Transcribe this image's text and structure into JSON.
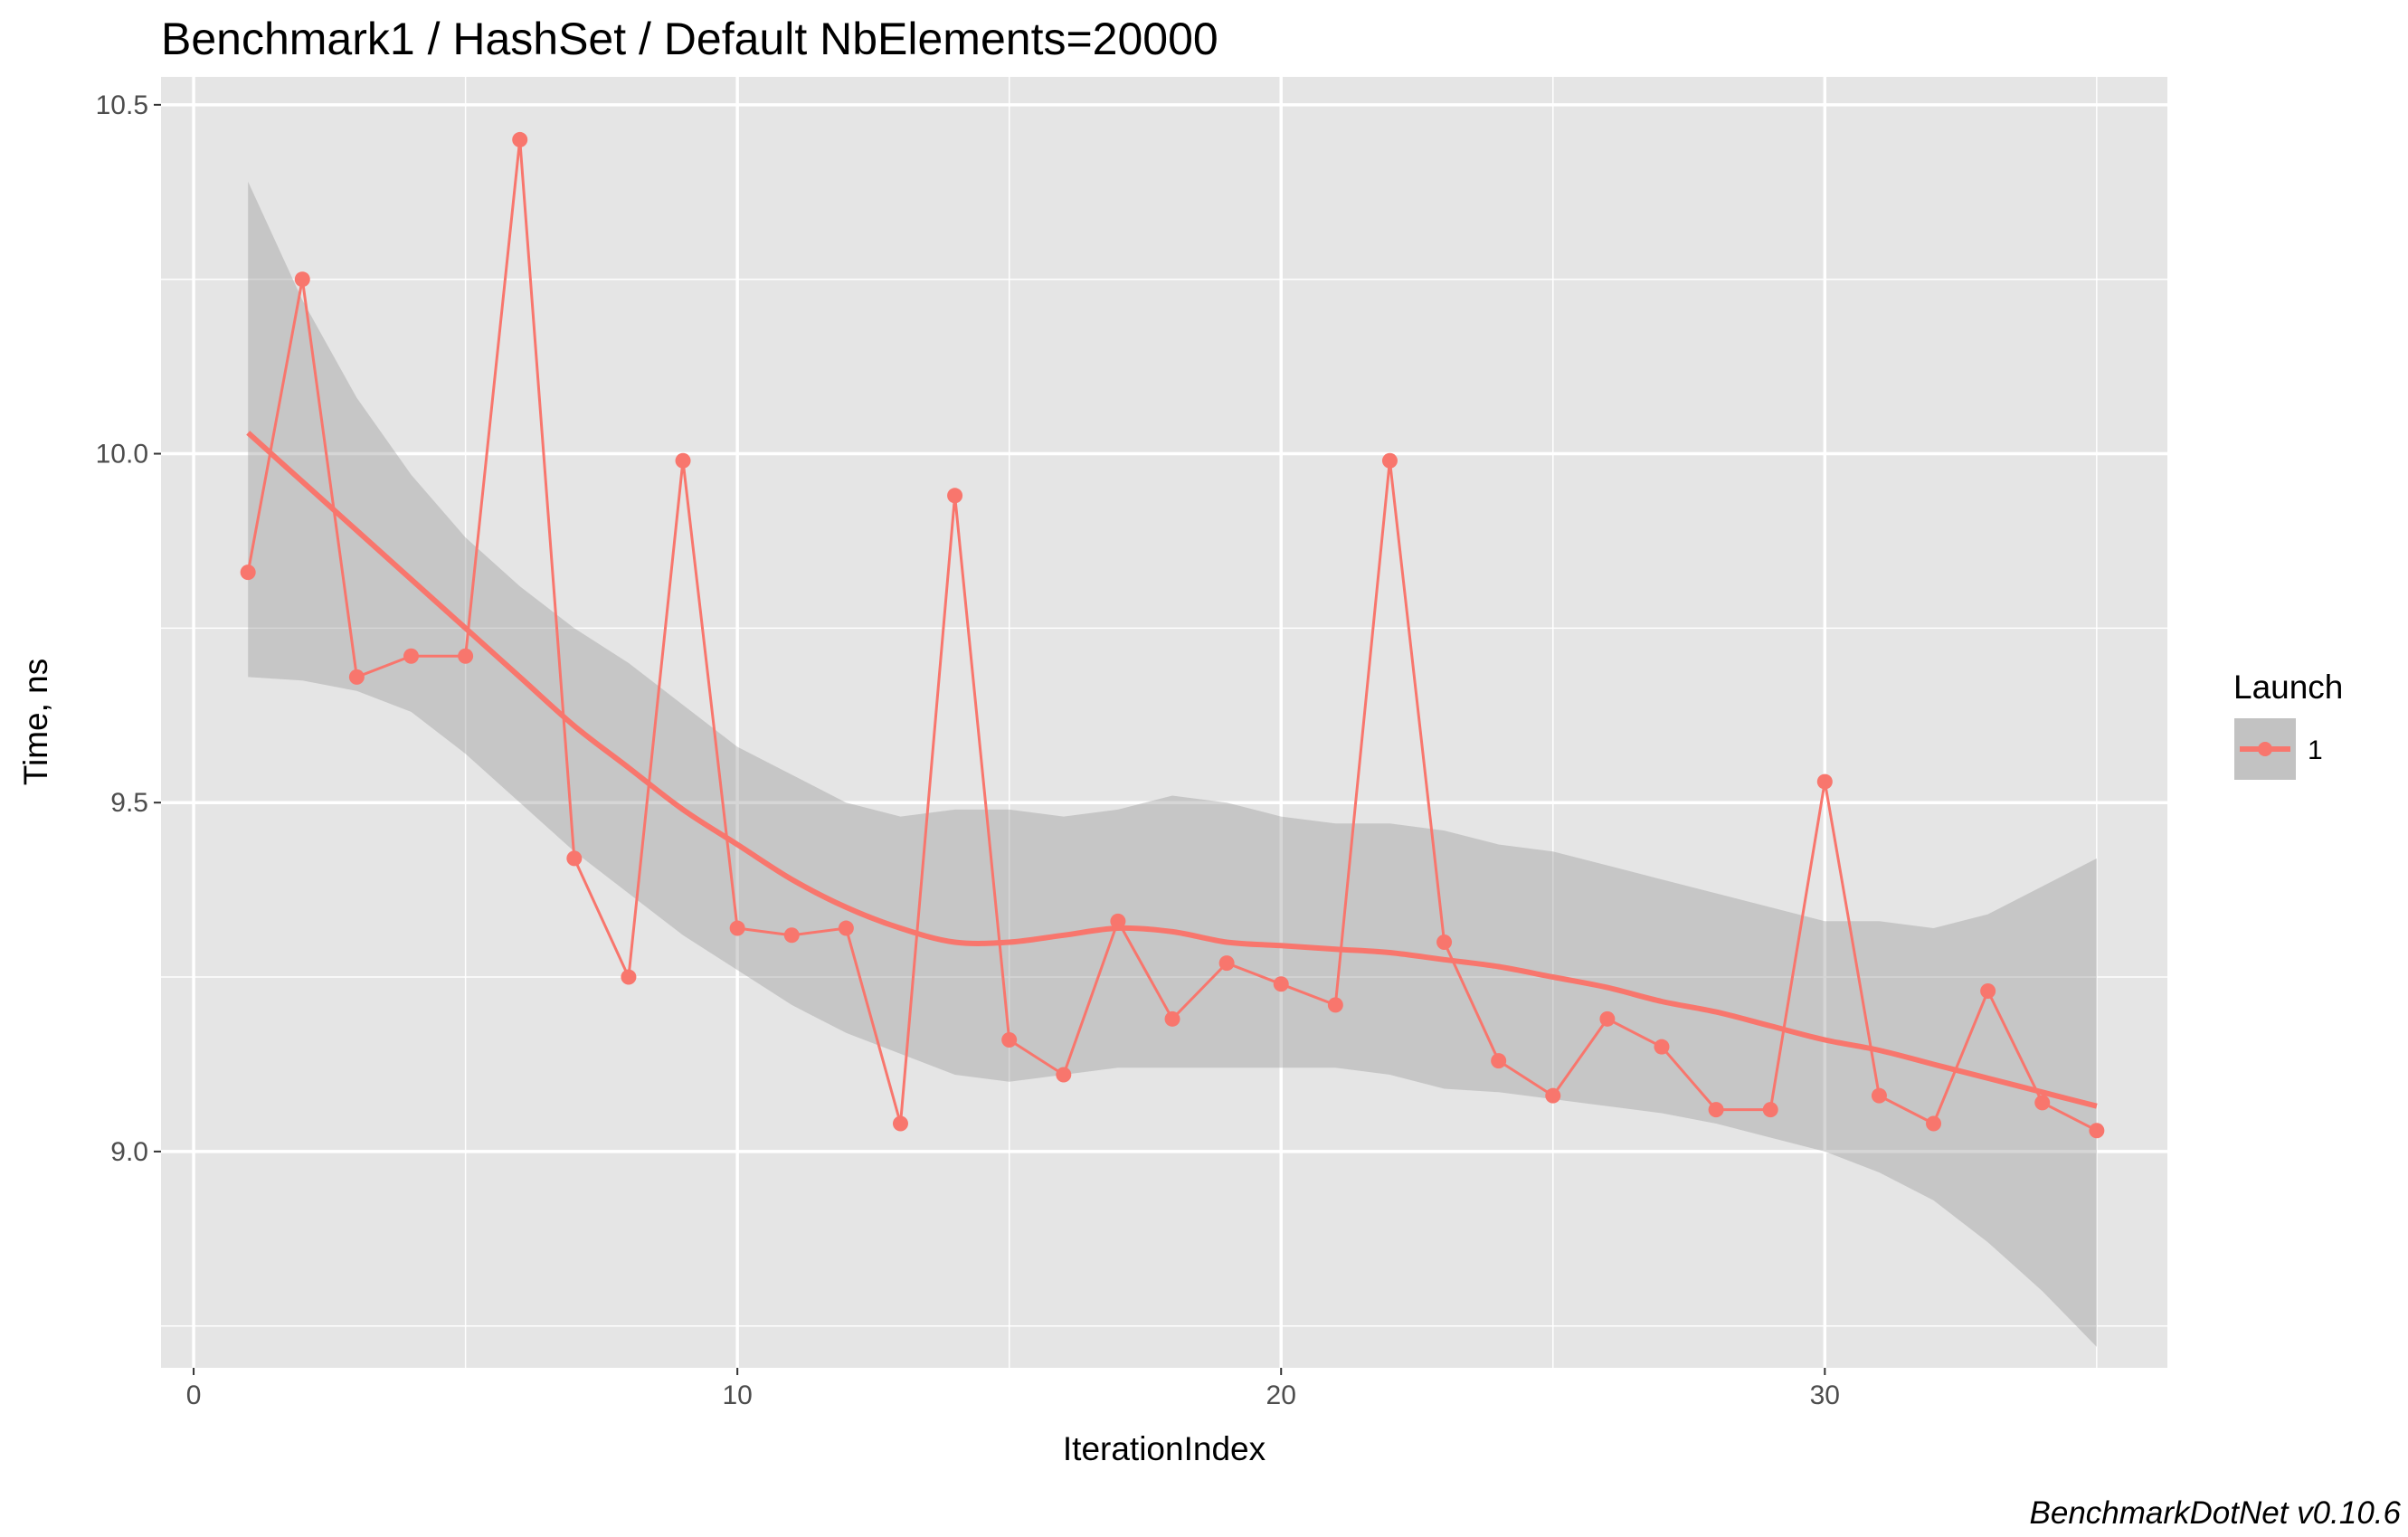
{
  "chart_data": {
    "type": "line",
    "title": "Benchmark1 / HashSet / Default NbElements=20000",
    "xlabel": "IterationIndex",
    "ylabel": "Time, ns",
    "caption": "BenchmarkDotNet v0.10.6",
    "xlim": [
      -0.6,
      36.3
    ],
    "ylim": [
      8.69,
      10.54
    ],
    "x_ticks": [
      0,
      10,
      20,
      30
    ],
    "x_tick_labels": [
      "0",
      "10",
      "20",
      "30"
    ],
    "x_minor_ticks": [
      5,
      15,
      25,
      35
    ],
    "y_ticks": [
      9.0,
      9.5,
      10.0,
      10.5
    ],
    "y_tick_labels": [
      "9.0",
      "9.5",
      "10.0",
      "10.5"
    ],
    "y_minor_ticks": [
      8.75,
      9.25,
      9.75,
      10.25
    ],
    "grid": true,
    "legend": {
      "title": "Launch",
      "position": "right",
      "entries": [
        "1"
      ]
    },
    "colors": {
      "series": "#f8766d",
      "series_dark": "#c96b66",
      "panel": "#e5e5e5",
      "grid": "#ffffff",
      "ribbon": "#999999"
    },
    "series": [
      {
        "name": "1",
        "x": [
          1,
          2,
          3,
          4,
          5,
          6,
          7,
          8,
          9,
          10,
          11,
          12,
          13,
          14,
          15,
          16,
          17,
          18,
          19,
          20,
          21,
          22,
          23,
          24,
          25,
          26,
          27,
          28,
          29,
          30,
          31,
          32,
          33,
          34,
          35
        ],
        "values": [
          9.83,
          10.25,
          9.68,
          9.71,
          9.71,
          10.45,
          9.42,
          9.25,
          9.99,
          9.32,
          9.31,
          9.32,
          9.04,
          9.94,
          9.16,
          9.11,
          9.33,
          9.19,
          9.27,
          9.24,
          9.21,
          9.99,
          9.3,
          9.13,
          9.08,
          9.19,
          9.15,
          9.06,
          9.06,
          9.53,
          9.08,
          9.04,
          9.23,
          9.07,
          9.03
        ]
      }
    ],
    "smooth": {
      "x": [
        1,
        2,
        3,
        4,
        5,
        6,
        7,
        8,
        9,
        10,
        11,
        12,
        13,
        14,
        15,
        16,
        17,
        18,
        19,
        20,
        21,
        22,
        23,
        24,
        25,
        26,
        27,
        28,
        29,
        30,
        31,
        32,
        33,
        34,
        35
      ],
      "fit": [
        10.03,
        9.96,
        9.89,
        9.82,
        9.75,
        9.68,
        9.61,
        9.55,
        9.49,
        9.44,
        9.39,
        9.35,
        9.32,
        9.3,
        9.3,
        9.31,
        9.32,
        9.315,
        9.3,
        9.295,
        9.29,
        9.285,
        9.275,
        9.265,
        9.25,
        9.235,
        9.215,
        9.2,
        9.18,
        9.16,
        9.145,
        9.125,
        9.105,
        9.085,
        9.065
      ],
      "lower": [
        9.68,
        9.675,
        9.66,
        9.63,
        9.57,
        9.5,
        9.43,
        9.37,
        9.31,
        9.26,
        9.21,
        9.17,
        9.14,
        9.11,
        9.1,
        9.11,
        9.12,
        9.12,
        9.12,
        9.12,
        9.12,
        9.11,
        9.09,
        9.085,
        9.075,
        9.065,
        9.055,
        9.04,
        9.02,
        9.0,
        8.97,
        8.93,
        8.87,
        8.8,
        8.72
      ],
      "upper": [
        10.39,
        10.22,
        10.08,
        9.97,
        9.88,
        9.81,
        9.75,
        9.7,
        9.64,
        9.58,
        9.54,
        9.5,
        9.48,
        9.49,
        9.49,
        9.48,
        9.49,
        9.51,
        9.5,
        9.48,
        9.47,
        9.47,
        9.46,
        9.44,
        9.43,
        9.41,
        9.39,
        9.37,
        9.35,
        9.33,
        9.33,
        9.32,
        9.34,
        9.38,
        9.42
      ]
    }
  }
}
